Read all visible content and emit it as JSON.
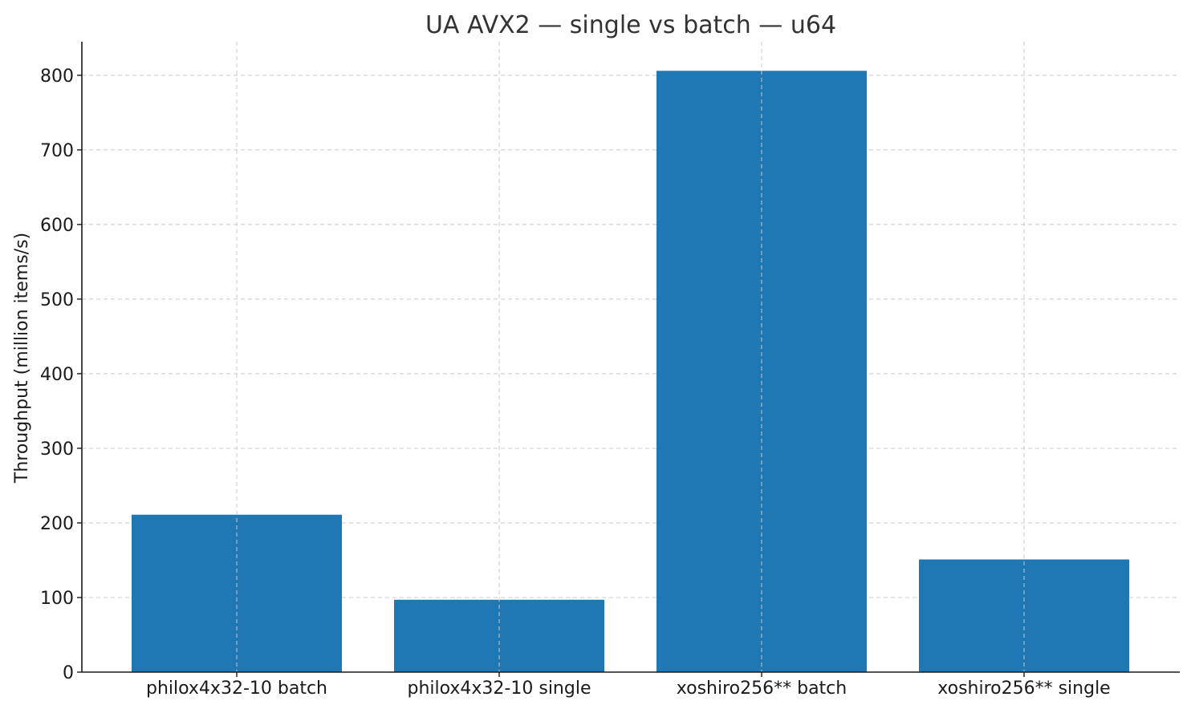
{
  "chart_data": {
    "type": "bar",
    "title": "UA AVX2 — single vs batch — u64",
    "xlabel": "",
    "ylabel": "Throughput (million items/s)",
    "categories": [
      "philox4x32-10 batch",
      "philox4x32-10 single",
      "xoshiro256** batch",
      "xoshiro256** single"
    ],
    "values": [
      211,
      97,
      806,
      151
    ],
    "ylim": [
      0,
      845
    ],
    "yticks": [
      "0",
      "100",
      "200",
      "300",
      "400",
      "500",
      "600",
      "700",
      "800"
    ],
    "grid": true,
    "bar_color": "#1f77b4"
  }
}
